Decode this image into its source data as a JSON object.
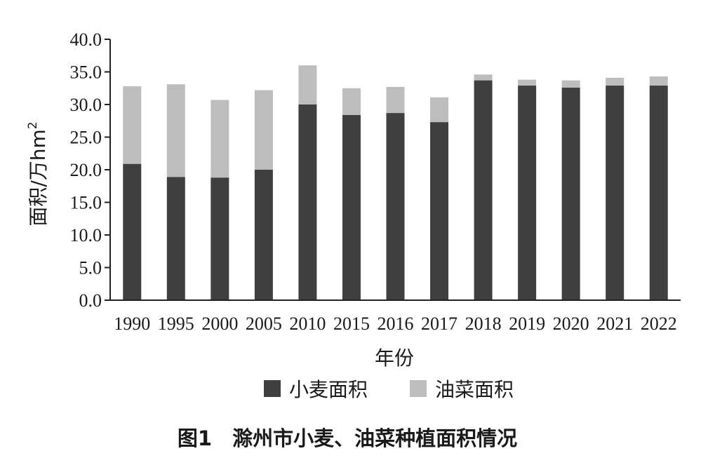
{
  "chart_data": {
    "type": "bar",
    "stacked": true,
    "categories": [
      "1990",
      "1995",
      "2000",
      "2005",
      "2010",
      "2015",
      "2016",
      "2017",
      "2018",
      "2019",
      "2020",
      "2021",
      "2022"
    ],
    "series": [
      {
        "name": "小麦面积",
        "color": "#3f3f3f",
        "values": [
          20.9,
          18.9,
          18.8,
          20.0,
          30.0,
          28.4,
          28.7,
          27.3,
          33.7,
          32.9,
          32.6,
          32.9,
          32.9
        ]
      },
      {
        "name": "油菜面积",
        "color": "#bdbdbd",
        "values": [
          11.9,
          14.2,
          11.9,
          12.2,
          6.0,
          4.1,
          4.0,
          3.8,
          0.9,
          0.9,
          1.1,
          1.2,
          1.4
        ]
      }
    ],
    "xlabel": "年份",
    "ylabel_main": "面积/万hm",
    "ylabel_sup": "2",
    "ylim": [
      0,
      40
    ],
    "y_ticks": [
      "0.0",
      "5.0",
      "10.0",
      "15.0",
      "20.0",
      "25.0",
      "30.0",
      "35.0",
      "40.0"
    ],
    "grid": false,
    "legend_position": "bottom"
  },
  "caption": "图1　滁州市小麦、油菜种植面积情况"
}
